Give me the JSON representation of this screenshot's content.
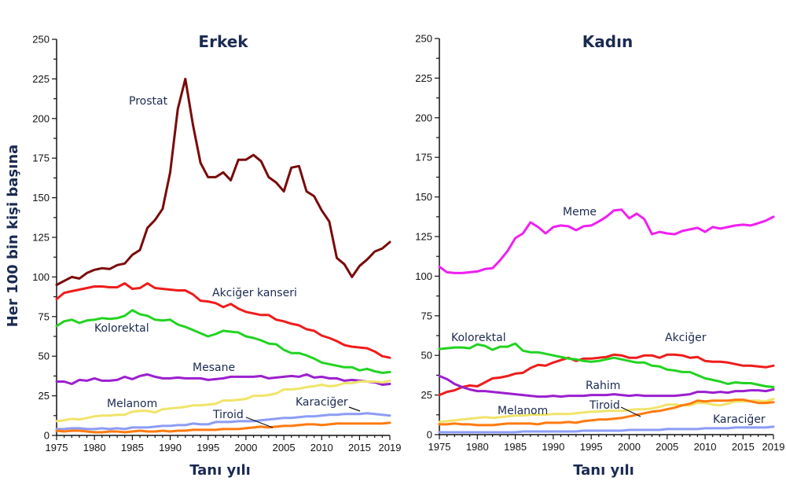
{
  "chart_data": [
    {
      "type": "line",
      "title": "Erkek",
      "xlabel": "Tanı yılı",
      "ylabel": "Her 100 bin kişi başına",
      "xlim": [
        1975,
        2019
      ],
      "ylim": [
        0,
        250
      ],
      "yticks": [
        0,
        25,
        50,
        75,
        100,
        125,
        150,
        175,
        200,
        225,
        250
      ],
      "xticks": [
        1975,
        1980,
        1985,
        1990,
        1995,
        2000,
        2005,
        2010,
        2015,
        2019
      ],
      "grid": false,
      "x_start": 1975,
      "series": [
        {
          "name": "Prostat",
          "color": "#7a0a0a",
          "values": [
            95,
            97.5,
            100,
            99,
            102.5,
            104.5,
            105.5,
            105,
            107.5,
            108.5,
            114,
            117,
            131,
            136,
            143,
            166,
            206,
            225,
            196,
            172,
            163,
            163,
            166,
            161,
            174,
            174,
            177,
            173,
            163,
            159.5,
            154,
            169,
            170,
            154,
            151,
            142,
            135,
            112,
            108,
            100,
            107,
            111,
            116,
            118,
            122
          ]
        },
        {
          "name": "Akciğer kanseri",
          "color": "#ee1c1c",
          "values": [
            86,
            90,
            91,
            92,
            93,
            94,
            94,
            93.5,
            93.5,
            96,
            92.5,
            93,
            96,
            93,
            92.5,
            92,
            91.5,
            91.5,
            89,
            85,
            84.5,
            83.5,
            81,
            83,
            80,
            78,
            77,
            76,
            76,
            73,
            72,
            70.5,
            69.5,
            67,
            66,
            63,
            61.5,
            59.5,
            57,
            56,
            55.5,
            55,
            53,
            50,
            49
          ]
        },
        {
          "name": "Kolorektal",
          "color": "#22d322",
          "values": [
            69,
            72,
            73,
            71,
            72.5,
            73,
            74,
            73.5,
            74,
            75.5,
            79,
            76.5,
            75.5,
            73,
            72.5,
            73,
            70,
            68.5,
            66.5,
            64.5,
            62.5,
            64,
            66,
            65.5,
            65,
            62.5,
            61.5,
            60,
            58,
            57.5,
            54,
            52,
            52,
            50.5,
            48.5,
            46,
            45,
            44,
            43,
            43,
            41,
            42,
            40.5,
            39.5,
            40
          ]
        },
        {
          "name": "Mesane",
          "color": "#9b1fcf",
          "values": [
            34,
            34,
            32.5,
            35,
            34.5,
            36,
            34.5,
            34.5,
            35,
            37,
            35.5,
            37.5,
            38.5,
            37,
            36,
            36,
            36.5,
            36,
            36,
            36,
            35,
            35.5,
            36,
            37,
            37,
            37,
            37,
            37.5,
            36,
            36.5,
            37,
            37.5,
            37,
            38.5,
            36.5,
            37,
            36,
            36,
            34.5,
            35,
            34.5,
            34,
            33.5,
            32,
            32.5
          ]
        },
        {
          "name": "Melanom",
          "color": "#f0e46a",
          "values": [
            9,
            9.5,
            10.5,
            10,
            11,
            12,
            12.5,
            12.5,
            13,
            13,
            15,
            15.5,
            15.5,
            14.5,
            16.5,
            17,
            17.5,
            18,
            19,
            19,
            19.5,
            20,
            22,
            22,
            22.5,
            23,
            25,
            25,
            25.5,
            26.5,
            29,
            29,
            29.5,
            30.5,
            31,
            32,
            31,
            31.5,
            33,
            33,
            34,
            34,
            34,
            33.5,
            34.5
          ]
        },
        {
          "name": "Karaciğer",
          "color": "#8c9cf5",
          "values": [
            4,
            4,
            4.5,
            4.5,
            4,
            4,
            4.5,
            4,
            4.5,
            4,
            5,
            5,
            5,
            5.5,
            6,
            6,
            6.5,
            6.5,
            7.5,
            7,
            7,
            8.5,
            8.5,
            8.5,
            9,
            9,
            9,
            9.5,
            10,
            10.5,
            11,
            11,
            11.5,
            12,
            12,
            12.5,
            13,
            13,
            13.5,
            13.5,
            13.5,
            14,
            13.5,
            13,
            12.5
          ]
        },
        {
          "name": "Tiroid",
          "color": "#ff7a10",
          "values": [
            3,
            2.5,
            3,
            3,
            2.5,
            2,
            2,
            2.5,
            2.5,
            2,
            2.5,
            3,
            2.5,
            2.5,
            3,
            2.5,
            3,
            3,
            3.5,
            3.5,
            3.5,
            3.5,
            4,
            4,
            4,
            4.5,
            5,
            5.5,
            5,
            5.5,
            6,
            6,
            6.5,
            7,
            7,
            6.5,
            7,
            7.5,
            7.5,
            7.5,
            7.5,
            7.5,
            7.5,
            7.5,
            8
          ]
        }
      ],
      "labels": [
        {
          "text": "Prostat",
          "series": "Prostat"
        },
        {
          "text": "Akciğer kanseri",
          "series": "Akciğer kanseri"
        },
        {
          "text": "Kolorektal",
          "series": "Kolorektal"
        },
        {
          "text": "Mesane",
          "series": "Mesane"
        },
        {
          "text": "Melanom",
          "series": "Melanom"
        },
        {
          "text": "Karaciğer",
          "series": "Karaciğer"
        },
        {
          "text": "Tiroid",
          "series": "Tiroid"
        }
      ]
    },
    {
      "type": "line",
      "title": "Kadın",
      "xlabel": "Tanı yılı",
      "ylabel": "",
      "xlim": [
        1975,
        2019
      ],
      "ylim": [
        0,
        250
      ],
      "yticks": [
        0,
        25,
        50,
        75,
        100,
        125,
        150,
        175,
        200,
        225,
        250
      ],
      "xticks": [
        1975,
        1980,
        1985,
        1990,
        1995,
        2000,
        2005,
        2010,
        2015,
        2019
      ],
      "grid": false,
      "x_start": 1975,
      "series": [
        {
          "name": "Meme",
          "color": "#f01ff0",
          "values": [
            106,
            102.5,
            102,
            102,
            102.5,
            103,
            104.5,
            105,
            110,
            116,
            124,
            127,
            134,
            131,
            127,
            131,
            132,
            131.5,
            129,
            131.5,
            132,
            134.5,
            137.5,
            141.5,
            142,
            136.5,
            139.5,
            136,
            126.5,
            128,
            127,
            126.5,
            128.5,
            129.5,
            130.5,
            128,
            131,
            130,
            131,
            132,
            132.5,
            132,
            133.5,
            135,
            137.5
          ]
        },
        {
          "name": "Akciğer",
          "color": "#ee1c1c",
          "values": [
            25,
            27,
            28,
            30,
            31,
            30.5,
            33,
            35.5,
            36,
            37,
            38.5,
            39,
            42,
            44,
            43.5,
            45.5,
            47,
            48.5,
            46.5,
            48,
            48,
            48.5,
            49,
            50.5,
            50,
            48.5,
            48.5,
            50,
            50,
            48.5,
            50.5,
            50.5,
            50,
            48.5,
            49,
            46.5,
            46,
            46,
            45.5,
            44.5,
            43.5,
            43.5,
            43,
            42.5,
            43.5
          ]
        },
        {
          "name": "Kolorektal",
          "color": "#22d322",
          "values": [
            54,
            54.5,
            55,
            55,
            54.5,
            57,
            56,
            53.5,
            55.5,
            55.5,
            57.5,
            53,
            52,
            52,
            51,
            50,
            49,
            48,
            47.5,
            46.5,
            46,
            46.5,
            47.5,
            48.5,
            47.5,
            46.5,
            45.5,
            45.5,
            43.5,
            43,
            41,
            40.5,
            39.5,
            39.5,
            37.5,
            35.5,
            34.5,
            33.5,
            32,
            33,
            32.5,
            32.5,
            31.5,
            30.5,
            30
          ]
        },
        {
          "name": "Rahim",
          "color": "#9b1fcf",
          "values": [
            37,
            35,
            32,
            30,
            28.5,
            27.5,
            27.5,
            27,
            26.5,
            26,
            25.5,
            25,
            24.5,
            24,
            24,
            24.5,
            24,
            24.5,
            24.5,
            24.5,
            25,
            25,
            25,
            25.5,
            25,
            24.5,
            25,
            24.5,
            24.5,
            24.5,
            24.5,
            24.5,
            25,
            25.5,
            27,
            27,
            26.5,
            27,
            26.5,
            27.5,
            27.5,
            28,
            28,
            27.5,
            28.5
          ]
        },
        {
          "name": "Melanom",
          "color": "#f0e46a",
          "values": [
            8,
            8.5,
            9,
            9.5,
            10,
            10.5,
            11,
            10.5,
            11,
            11.5,
            12,
            12,
            12.5,
            12.5,
            12.5,
            13,
            13,
            13,
            13.5,
            14,
            14.5,
            14.5,
            15,
            15,
            15,
            15.5,
            16,
            16,
            16.5,
            17.5,
            19,
            19,
            18.5,
            18.5,
            20,
            20,
            19,
            18.5,
            19.5,
            21,
            21,
            21.5,
            21.5,
            21,
            22.5
          ]
        },
        {
          "name": "Tiroid",
          "color": "#ff7a10",
          "values": [
            6.5,
            6.5,
            7,
            6.5,
            6.5,
            6,
            6,
            6,
            6.5,
            7,
            7,
            7,
            7,
            6.5,
            7.5,
            7.5,
            7.5,
            8,
            7.5,
            8.5,
            9,
            9.5,
            9.5,
            10,
            10.5,
            11.5,
            12.5,
            13.5,
            14.5,
            15,
            16,
            17,
            18.5,
            19.5,
            21.5,
            21,
            21.5,
            21.5,
            21.5,
            22,
            22,
            21,
            20,
            20,
            20.5
          ]
        },
        {
          "name": "Karaciğer",
          "color": "#8c9cf5",
          "values": [
            1.5,
            1.5,
            1.5,
            1.5,
            1.5,
            1.5,
            1.5,
            1.5,
            1.5,
            1.5,
            1.5,
            2,
            2,
            2,
            2,
            2,
            2,
            2,
            2,
            2.5,
            2.5,
            2.5,
            2.5,
            2.5,
            2.5,
            3,
            3,
            3,
            3,
            3,
            3.5,
            3.5,
            3.5,
            3.5,
            3.5,
            4,
            4,
            4,
            4,
            4.5,
            4.5,
            4.5,
            4.5,
            4.5,
            5
          ]
        }
      ],
      "labels": [
        {
          "text": "Meme",
          "series": "Meme"
        },
        {
          "text": "Kolorektal",
          "series": "Kolorektal"
        },
        {
          "text": "Akciğer",
          "series": "Akciğer"
        },
        {
          "text": "Rahim",
          "series": "Rahim"
        },
        {
          "text": "Melanom",
          "series": "Melanom"
        },
        {
          "text": "Tiroid",
          "series": "Tiroid"
        },
        {
          "text": "Karaciğer",
          "series": "Karaciğer"
        }
      ]
    }
  ]
}
